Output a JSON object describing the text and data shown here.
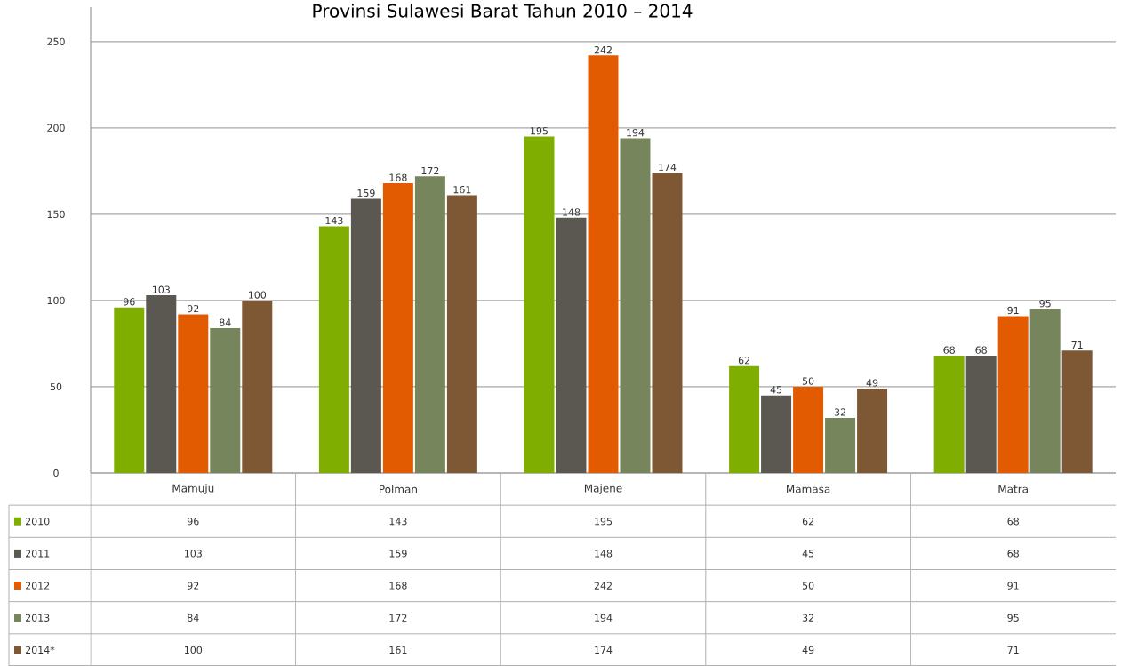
{
  "chart_data": {
    "type": "bar",
    "title": "Provinsi Sulawesi Barat Tahun 2010 – 2014",
    "categories": [
      "Mamuju",
      "Polman",
      "Majene",
      "Mamasa",
      "Matra"
    ],
    "series": [
      {
        "name": "2010",
        "color": "#7fae00",
        "values": [
          96,
          143,
          195,
          62,
          68
        ],
        "value_labels": [
          "96",
          "143",
          "195",
          "62",
          "68"
        ]
      },
      {
        "name": "2011",
        "color": "#5b5751",
        "values": [
          103,
          159,
          148,
          45,
          68
        ],
        "value_labels": [
          "103",
          "159",
          "148",
          "45",
          "68"
        ]
      },
      {
        "name": "2012",
        "color": "#e35b00",
        "values": [
          92,
          168,
          242,
          50,
          91
        ],
        "value_labels": [
          "92",
          "168",
          "242",
          "50",
          "91"
        ]
      },
      {
        "name": "2013",
        "color": "#76855c",
        "values": [
          84,
          172,
          194,
          32,
          95
        ],
        "value_labels": [
          "84",
          "172",
          "194",
          "32",
          "95"
        ]
      },
      {
        "name": "2014*",
        "color": "#7e5735",
        "values": [
          100,
          161,
          174,
          49,
          71
        ],
        "value_labels": [
          "100",
          "161",
          "174",
          "49",
          "71"
        ]
      }
    ],
    "ylim": [
      0,
      270
    ],
    "yticks": [
      0,
      50,
      100,
      150,
      200,
      250
    ],
    "grid": "y",
    "legend": "bottom",
    "annotations": [
      "96",
      "143",
      "195",
      "62",
      "68",
      "103",
      "159",
      "148",
      "45",
      "68",
      "92",
      "168",
      "242",
      "50",
      "91",
      "84",
      "172",
      "194",
      "32",
      "95",
      "100",
      "161",
      "174",
      "49",
      "71"
    ]
  }
}
